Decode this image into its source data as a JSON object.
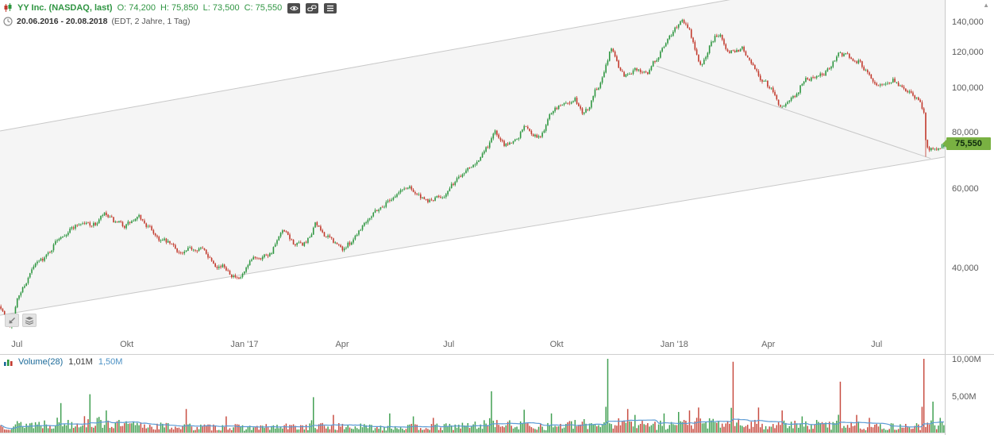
{
  "header": {
    "symbol": "YY Inc. (NASDAQ, last)",
    "ohlc": [
      {
        "label": "O:",
        "value": "74,200"
      },
      {
        "label": "H:",
        "value": "75,850"
      },
      {
        "label": "L:",
        "value": "73,500"
      },
      {
        "label": "C:",
        "value": "75,550"
      }
    ],
    "date_range": "20.06.2016 - 20.08.2018",
    "period_info": "(EDT, 2 Jahre, 1 Tag)"
  },
  "price_axis": {
    "ticks": [
      {
        "label": "140,000",
        "value": 140
      },
      {
        "label": "120,000",
        "value": 120
      },
      {
        "label": "100,000",
        "value": 100
      },
      {
        "label": "80,000",
        "value": 80
      },
      {
        "label": "60,000",
        "value": 60
      },
      {
        "label": "40,000",
        "value": 40
      }
    ],
    "last_price_label": "75,550",
    "last_price": 75.55
  },
  "time_axis": {
    "labels": [
      {
        "label": "Jul",
        "f": 0.012
      },
      {
        "label": "Okt",
        "f": 0.127
      },
      {
        "label": "Jan '17",
        "f": 0.244
      },
      {
        "label": "Apr",
        "f": 0.355
      },
      {
        "label": "Jul",
        "f": 0.469
      },
      {
        "label": "Okt",
        "f": 0.582
      },
      {
        "label": "Jan '18",
        "f": 0.699
      },
      {
        "label": "Apr",
        "f": 0.806
      },
      {
        "label": "Jul",
        "f": 0.922
      }
    ]
  },
  "volume_pane": {
    "title": "Volume(28)",
    "value": "1,01M",
    "ma_value": "1,50M",
    "axis_ticks": [
      {
        "label": "10,00M",
        "value": 10
      },
      {
        "label": "5,00M",
        "value": 5
      }
    ]
  },
  "colors": {
    "up": "#2e9640",
    "down": "#c23a2d",
    "ma_line": "#5b9bd5",
    "tag_bg": "#79b142",
    "trend_line": "#c8c8c8",
    "channel_fill": "rgba(120,120,120,0.07)",
    "header_green": "#2f9542",
    "axis_text": "#5a5a5a"
  },
  "chart_data": {
    "type": "candlestick",
    "instrument": "YY Inc. (NASDAQ)",
    "timeframe": "1 Tag",
    "range": "20.06.2016 - 20.08.2018",
    "scale": "log",
    "bars": 520,
    "ylim": [
      28,
      150
    ],
    "last_candle": {
      "open": 74.2,
      "high": 75.85,
      "low": 73.5,
      "close": 75.55,
      "volume_m": 1.01
    },
    "volume_ma28_m": 1.5,
    "price_anchors": [
      [
        0.0,
        33
      ],
      [
        0.006,
        31
      ],
      [
        0.01,
        29.8
      ],
      [
        0.017,
        34
      ],
      [
        0.034,
        40
      ],
      [
        0.05,
        43
      ],
      [
        0.063,
        47.5
      ],
      [
        0.084,
        50.5
      ],
      [
        0.1,
        50
      ],
      [
        0.109,
        52.5
      ],
      [
        0.122,
        50
      ],
      [
        0.13,
        49.5
      ],
      [
        0.147,
        51.5
      ],
      [
        0.16,
        48.5
      ],
      [
        0.168,
        46.5
      ],
      [
        0.18,
        45
      ],
      [
        0.193,
        43
      ],
      [
        0.21,
        44.8
      ],
      [
        0.227,
        41.3
      ],
      [
        0.24,
        40
      ],
      [
        0.248,
        38.5
      ],
      [
        0.252,
        37.3
      ],
      [
        0.262,
        40
      ],
      [
        0.269,
        42.2
      ],
      [
        0.286,
        43.4
      ],
      [
        0.295,
        46.5
      ],
      [
        0.299,
        48
      ],
      [
        0.31,
        45.5
      ],
      [
        0.319,
        44.8
      ],
      [
        0.33,
        47
      ],
      [
        0.333,
        51
      ],
      [
        0.338,
        48.5
      ],
      [
        0.353,
        45.6
      ],
      [
        0.362,
        44
      ],
      [
        0.37,
        45.5
      ],
      [
        0.382,
        49.6
      ],
      [
        0.395,
        53.7
      ],
      [
        0.405,
        55
      ],
      [
        0.412,
        57
      ],
      [
        0.424,
        59.3
      ],
      [
        0.434,
        60.8
      ],
      [
        0.443,
        58
      ],
      [
        0.45,
        55.8
      ],
      [
        0.462,
        57
      ],
      [
        0.475,
        59.3
      ],
      [
        0.487,
        64.3
      ],
      [
        0.498,
        68
      ],
      [
        0.504,
        69.7
      ],
      [
        0.512,
        72
      ],
      [
        0.517,
        74.5
      ],
      [
        0.523,
        81
      ],
      [
        0.527,
        78
      ],
      [
        0.533,
        74.5
      ],
      [
        0.541,
        76
      ],
      [
        0.546,
        77.2
      ],
      [
        0.551,
        80
      ],
      [
        0.555,
        82.5
      ],
      [
        0.562,
        80.5
      ],
      [
        0.567,
        79
      ],
      [
        0.572,
        78
      ],
      [
        0.578,
        83
      ],
      [
        0.584,
        88.9
      ],
      [
        0.592,
        91
      ],
      [
        0.597,
        92.6
      ],
      [
        0.604,
        93.5
      ],
      [
        0.609,
        94.5
      ],
      [
        0.614,
        90
      ],
      [
        0.618,
        87
      ],
      [
        0.625,
        92
      ],
      [
        0.63,
        98.4
      ],
      [
        0.636,
        104
      ],
      [
        0.641,
        112
      ],
      [
        0.645,
        120
      ],
      [
        0.648,
        122
      ],
      [
        0.652,
        116
      ],
      [
        0.657,
        110
      ],
      [
        0.661,
        106.6
      ],
      [
        0.668,
        109
      ],
      [
        0.672,
        111
      ],
      [
        0.679,
        110
      ],
      [
        0.685,
        108.8
      ],
      [
        0.69,
        112
      ],
      [
        0.697,
        118
      ],
      [
        0.704,
        124
      ],
      [
        0.71,
        130.6
      ],
      [
        0.716,
        136
      ],
      [
        0.72,
        141
      ],
      [
        0.723,
        143
      ],
      [
        0.727,
        138
      ],
      [
        0.731,
        133
      ],
      [
        0.735,
        124
      ],
      [
        0.739,
        116
      ],
      [
        0.743,
        110.5
      ],
      [
        0.748,
        118
      ],
      [
        0.752,
        125.4
      ],
      [
        0.757,
        130
      ],
      [
        0.761,
        133
      ],
      [
        0.766,
        128
      ],
      [
        0.772,
        121
      ],
      [
        0.778,
        122
      ],
      [
        0.786,
        122.9
      ],
      [
        0.791,
        119
      ],
      [
        0.795,
        115.7
      ],
      [
        0.8,
        110
      ],
      [
        0.804,
        106.6
      ],
      [
        0.811,
        102.3
      ],
      [
        0.817,
        99
      ],
      [
        0.823,
        94.5
      ],
      [
        0.828,
        91
      ],
      [
        0.833,
        91.5
      ],
      [
        0.837,
        92.6
      ],
      [
        0.843,
        97
      ],
      [
        0.849,
        102.3
      ],
      [
        0.856,
        105
      ],
      [
        0.862,
        106.6
      ],
      [
        0.869,
        107.5
      ],
      [
        0.875,
        108.8
      ],
      [
        0.881,
        114
      ],
      [
        0.888,
        120.4
      ],
      [
        0.893,
        119
      ],
      [
        0.899,
        117.5
      ],
      [
        0.905,
        116.5
      ],
      [
        0.909,
        115.7
      ],
      [
        0.916,
        110
      ],
      [
        0.921,
        106.6
      ],
      [
        0.928,
        104
      ],
      [
        0.934,
        102.3
      ],
      [
        0.941,
        103.5
      ],
      [
        0.946,
        104.5
      ],
      [
        0.953,
        102
      ],
      [
        0.959,
        100
      ],
      [
        0.966,
        96.5
      ],
      [
        0.972,
        94
      ],
      [
        0.976,
        92.6
      ],
      [
        0.979,
        88
      ],
      [
        0.981,
        74
      ],
      [
        0.984,
        72
      ],
      [
        0.987,
        73
      ],
      [
        0.99,
        74.1
      ],
      [
        0.994,
        74.5
      ],
      [
        1.0,
        75.55
      ]
    ],
    "volume_anchors_m": [
      [
        0,
        1.1
      ],
      [
        0.05,
        1.5
      ],
      [
        0.09,
        1.7
      ],
      [
        0.13,
        1.2
      ],
      [
        0.2,
        0.9
      ],
      [
        0.27,
        0.8
      ],
      [
        0.33,
        1.0
      ],
      [
        0.4,
        0.85
      ],
      [
        0.47,
        0.9
      ],
      [
        0.52,
        1.3
      ],
      [
        0.58,
        1.0
      ],
      [
        0.64,
        1.5
      ],
      [
        0.7,
        1.2
      ],
      [
        0.74,
        1.5
      ],
      [
        0.78,
        1.3
      ],
      [
        0.83,
        1.2
      ],
      [
        0.89,
        1.3
      ],
      [
        0.93,
        0.9
      ],
      [
        0.97,
        1.0
      ],
      [
        1,
        1.4
      ]
    ],
    "volume_spikes_m": [
      [
        0.063,
        4.0,
        "g"
      ],
      [
        0.094,
        5.2,
        "g"
      ],
      [
        0.112,
        3.0,
        "g"
      ],
      [
        0.196,
        3.2,
        "r"
      ],
      [
        0.238,
        2.2,
        "r"
      ],
      [
        0.332,
        4.8,
        "g"
      ],
      [
        0.353,
        2.4,
        "r"
      ],
      [
        0.412,
        2.6,
        "g"
      ],
      [
        0.437,
        2.2,
        "g"
      ],
      [
        0.458,
        2.0,
        "r"
      ],
      [
        0.521,
        5.6,
        "g"
      ],
      [
        0.555,
        3.1,
        "g"
      ],
      [
        0.584,
        2.6,
        "g"
      ],
      [
        0.643,
        10.0,
        "g"
      ],
      [
        0.664,
        3.2,
        "r"
      ],
      [
        0.672,
        2.4,
        "g"
      ],
      [
        0.704,
        2.6,
        "g"
      ],
      [
        0.718,
        2.8,
        "g"
      ],
      [
        0.731,
        3.0,
        "r"
      ],
      [
        0.74,
        3.4,
        "r"
      ],
      [
        0.777,
        9.6,
        "r"
      ],
      [
        0.803,
        3.4,
        "r"
      ],
      [
        0.828,
        3.0,
        "r"
      ],
      [
        0.849,
        2.2,
        "g"
      ],
      [
        0.891,
        6.9,
        "r"
      ],
      [
        0.908,
        2.4,
        "r"
      ],
      [
        0.921,
        2.0,
        "r"
      ],
      [
        0.979,
        10.0,
        "r"
      ],
      [
        0.988,
        4.2,
        "g"
      ],
      [
        0.996,
        2.0,
        "g"
      ]
    ],
    "trend_lines": [
      {
        "name": "channel-lower",
        "f1": 0.0,
        "p1": 31.5,
        "f2": 1.0,
        "p2": 70.5,
        "extend": false
      },
      {
        "name": "channel-upper",
        "f1": 0.0,
        "p1": 80.5,
        "f2": 0.731,
        "p2": 151.5,
        "extend": true
      },
      {
        "name": "downtrend",
        "f1": 0.695,
        "p1": 112,
        "f2": 0.985,
        "p2": 70,
        "extend": false
      }
    ]
  }
}
